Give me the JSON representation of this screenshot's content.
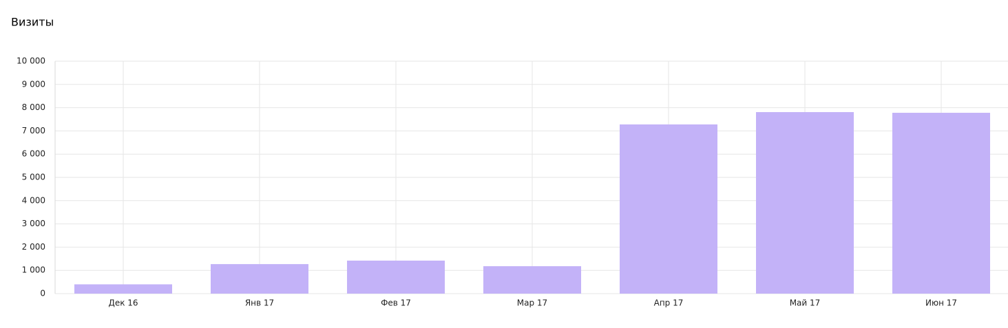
{
  "chart_data": {
    "type": "bar",
    "title": "Визиты",
    "categories": [
      "Дек 16",
      "Янв 17",
      "Фев 17",
      "Мар 17",
      "Апр 17",
      "Май 17",
      "Июн 17"
    ],
    "values": [
      400,
      1270,
      1420,
      1180,
      7280,
      7810,
      7780
    ],
    "color": "#c3b2f8",
    "ylim": [
      0,
      10000
    ],
    "yticks": [
      0,
      {
        "value": 1000,
        "label": "1 000"
      },
      {
        "value": 2000,
        "label": "2 000"
      },
      {
        "value": 3000,
        "label": "3 000"
      },
      {
        "value": 4000,
        "label": "4 000"
      },
      {
        "value": 5000,
        "label": "5 000"
      },
      {
        "value": 6000,
        "label": "6 000"
      },
      {
        "value": 7000,
        "label": "7 000"
      },
      {
        "value": 8000,
        "label": "8 000"
      },
      {
        "value": 9000,
        "label": "9 000"
      },
      {
        "value": 10000,
        "label": "10 000"
      }
    ],
    "grid": true
  }
}
